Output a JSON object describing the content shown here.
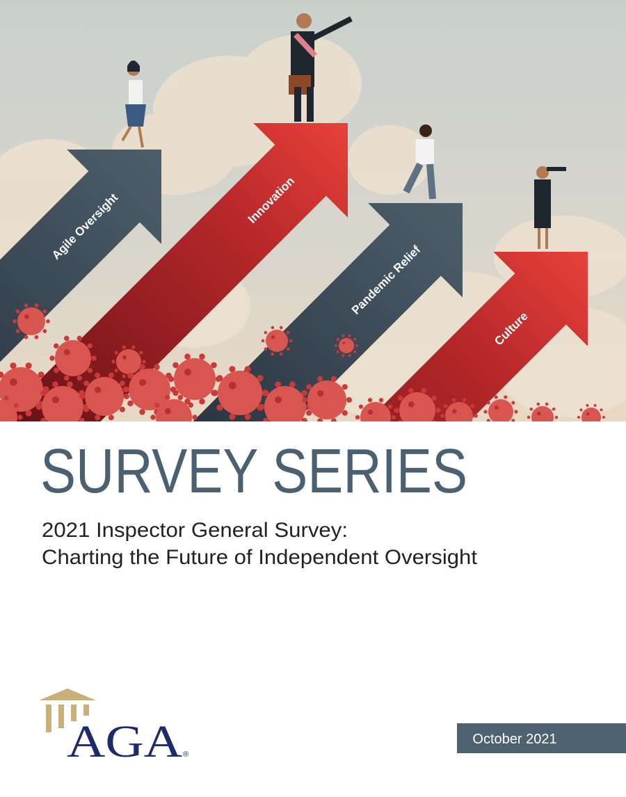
{
  "illustration": {
    "arrows": [
      {
        "label": "Agile Oversight"
      },
      {
        "label": "Innovation"
      },
      {
        "label": "Pandemic Relief"
      },
      {
        "label": "Culture"
      }
    ]
  },
  "title": "SURVEY SERIES",
  "subtitle": [
    "2021 Inspector General Survey:",
    "Charting the Future of Independent Oversight"
  ],
  "logo": {
    "text": "AGA",
    "mark": "®"
  },
  "date": "October 2021"
}
